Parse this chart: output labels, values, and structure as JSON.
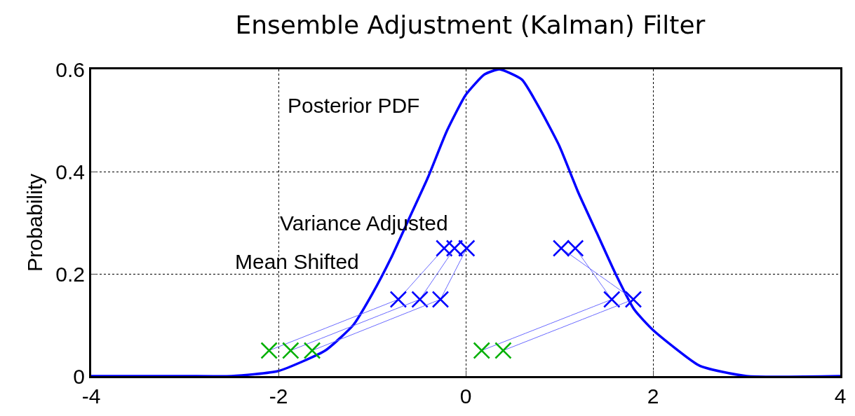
{
  "chart_data": {
    "type": "line",
    "title": "Ensemble Adjustment (Kalman) Filter",
    "ylabel": "Probability",
    "xlim": [
      -4,
      4
    ],
    "xticks": [
      -4,
      -2,
      0,
      2,
      4
    ],
    "ylim": [
      0,
      0.6
    ],
    "yticks": [
      0,
      0.2,
      0.4,
      0.6
    ],
    "grid": true,
    "series": [
      {
        "color": "#0000ff",
        "x": [
          -4,
          -3,
          -2.5,
          -2,
          -1.5,
          -1.2,
          -1,
          -0.8,
          -0.6,
          -0.4,
          -0.2,
          0,
          0.2,
          0.36,
          0.6,
          0.8,
          1,
          1.2,
          1.4,
          1.6,
          1.8,
          2,
          2.5,
          3,
          4
        ],
        "values": [
          0,
          0,
          0,
          0.01,
          0.05,
          0.1,
          0.16,
          0.23,
          0.31,
          0.39,
          0.48,
          0.55,
          0.59,
          0.6,
          0.58,
          0.52,
          0.45,
          0.36,
          0.28,
          0.2,
          0.13,
          0.09,
          0.02,
          0,
          0
        ]
      },
      {
        "color": "#6a6aff",
        "marker": "cross",
        "colors": [
          "#00b000",
          "#0000ff",
          "#0000ff"
        ],
        "x": [
          -2.1,
          -0.72,
          -0.23
        ],
        "values": [
          0.05,
          0.15,
          0.25
        ]
      },
      {
        "color": "#6a6aff",
        "marker": "cross",
        "colors": [
          "#00b000",
          "#0000ff",
          "#0000ff"
        ],
        "x": [
          -1.87,
          -0.49,
          -0.12
        ],
        "values": [
          0.05,
          0.15,
          0.25
        ]
      },
      {
        "color": "#6a6aff",
        "marker": "cross",
        "colors": [
          "#00b000",
          "#0000ff",
          "#0000ff"
        ],
        "x": [
          -1.64,
          -0.27,
          0.01
        ],
        "values": [
          0.05,
          0.15,
          0.25
        ]
      },
      {
        "color": "#6a6aff",
        "marker": "cross",
        "colors": [
          "#00b000",
          "#0000ff",
          "#0000ff"
        ],
        "x": [
          0.17,
          1.56,
          1.17
        ],
        "values": [
          0.05,
          0.15,
          0.25
        ]
      },
      {
        "color": "#6a6aff",
        "marker": "cross",
        "colors": [
          "#00b000",
          "#0000ff",
          "#0000ff"
        ],
        "x": [
          0.4,
          1.79,
          1.02
        ],
        "values": [
          0.05,
          0.15,
          0.25
        ]
      }
    ],
    "annotations": [
      "Posterior PDF",
      "Variance Adjusted",
      "Mean Shifted"
    ]
  }
}
